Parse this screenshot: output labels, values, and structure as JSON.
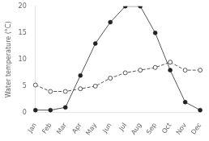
{
  "chart_data": {
    "type": "line",
    "y_label": "Water temperature (°C)",
    "categories": [
      "Jan",
      "Feb",
      "Mar",
      "Apr",
      "May",
      "Jun",
      "Jul",
      "Aug",
      "Sep",
      "Oct",
      "Nov",
      "Dec"
    ],
    "color": "#555555",
    "series": [
      {
        "color": "#222222",
        "marker": "circle",
        "line_style": "solid",
        "values": [
          0.5,
          0.5,
          1.0,
          7.0,
          13.0,
          17.0,
          20.0,
          20.0,
          15.0,
          8.0,
          2.0,
          0.5
        ]
      },
      {
        "color": "#555555",
        "marker": "open_circle",
        "line_style": "dashed",
        "values": [
          5.2,
          4.0,
          4.0,
          4.5,
          5.0,
          6.5,
          7.5,
          8.0,
          8.5,
          9.5,
          8.0,
          8.0
        ]
      }
    ],
    "ylim": [
      0,
      20
    ],
    "yticks": [
      0,
      5,
      10,
      15,
      20
    ],
    "grid": false
  }
}
